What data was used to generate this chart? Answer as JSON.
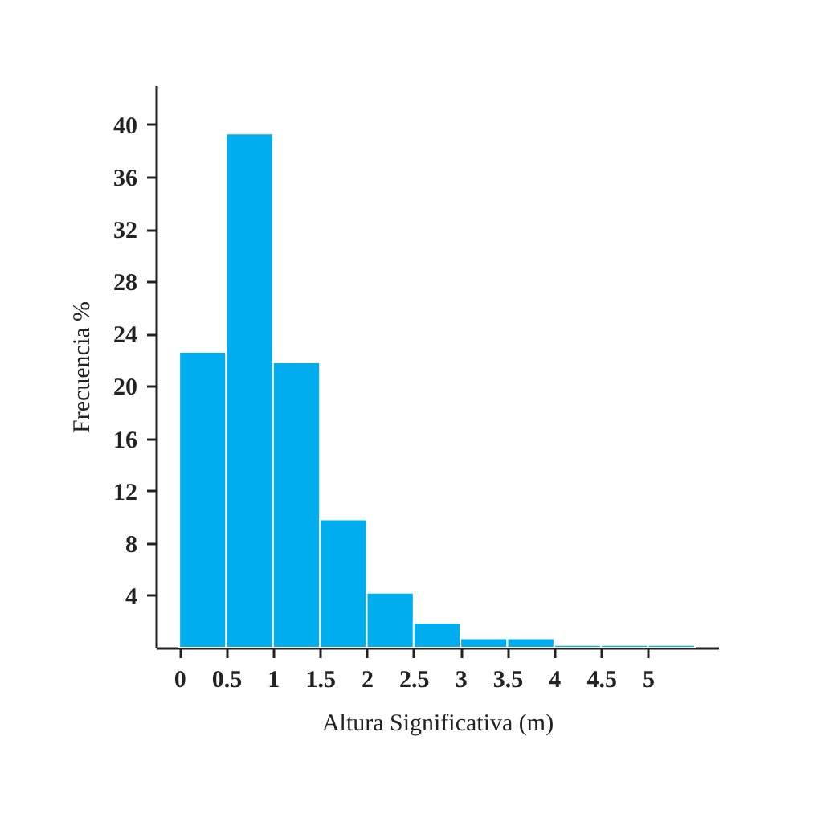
{
  "chart_data": {
    "type": "histogram",
    "xlabel": "Altura Significativa (m)",
    "ylabel": "Frecuencia %",
    "bins": [
      0,
      0.5,
      1,
      1.5,
      2,
      2.5,
      3,
      3.5,
      4,
      4.5,
      5,
      5.5
    ],
    "values": [
      22.6,
      39.3,
      21.8,
      9.8,
      4.2,
      1.9,
      0.7,
      0.7,
      0.2,
      0.2,
      0.2
    ],
    "color": "#00adef",
    "xlim": [
      -0.25,
      5.75
    ],
    "xticks": [
      0,
      0.5,
      1,
      1.5,
      2,
      2.5,
      3,
      3.5,
      4,
      4.5,
      5
    ],
    "ylim": [
      0,
      43
    ],
    "yticks": [
      4,
      8,
      12,
      16,
      20,
      24,
      28,
      32,
      36,
      40
    ],
    "grid": false
  }
}
